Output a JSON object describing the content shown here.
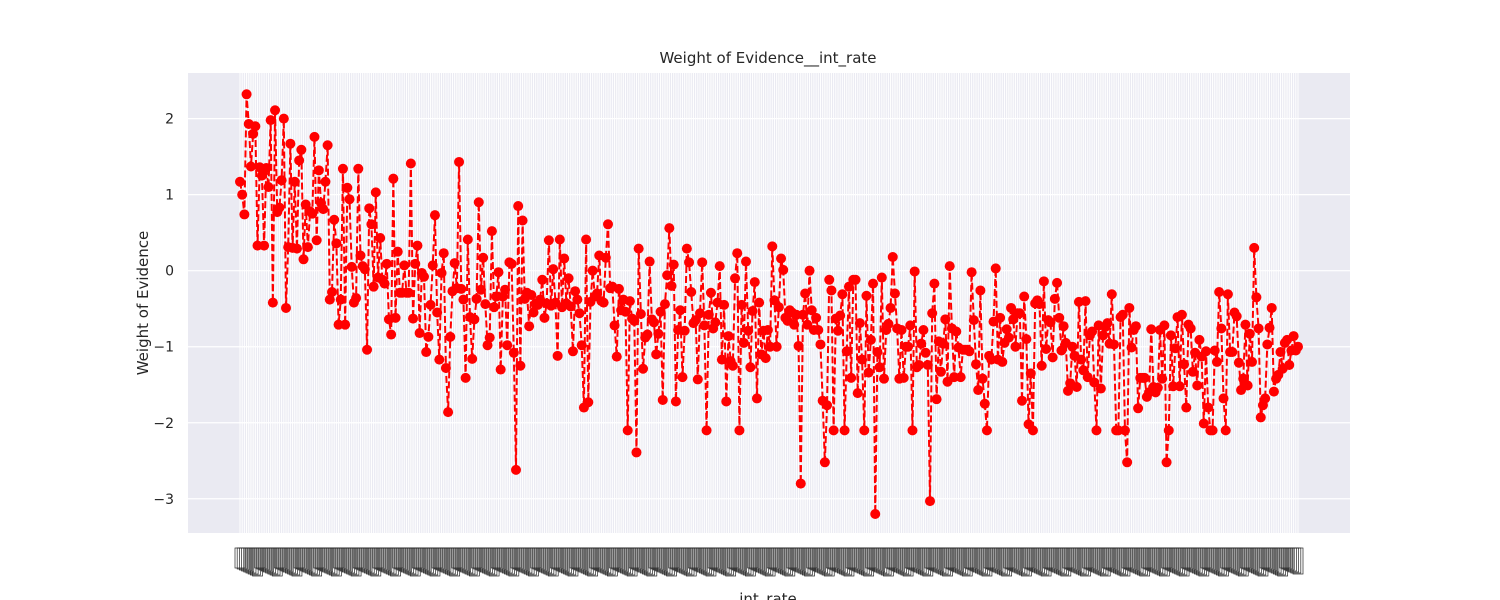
{
  "chart_data": {
    "type": "line",
    "title": "Weight of Evidence__int_rate",
    "xlabel": "int_rate",
    "ylabel": "Weight of Evidence",
    "ylim": [
      -3.45,
      2.6
    ],
    "yticks": [
      2,
      1,
      0,
      -1,
      -2,
      -3
    ],
    "ytick_labels": [
      "2",
      "1",
      "0",
      "−1",
      "−2",
      "−3"
    ],
    "grid": true,
    "legend": "none",
    "x_tick_labels_legible": false,
    "series": [
      {
        "values": [
          1.17,
          1.0,
          0.74,
          2.32,
          1.93,
          1.37,
          1.8,
          1.9,
          0.33,
          1.36,
          1.25,
          0.33,
          1.35,
          1.1,
          1.98,
          -0.42,
          2.11,
          0.77,
          0.83,
          1.19,
          2.0,
          -0.49,
          0.31,
          1.67,
          0.3,
          1.17,
          0.29,
          1.45,
          1.59,
          0.15,
          0.87,
          0.31,
          0.78,
          0.75,
          1.76,
          0.4,
          1.32,
          0.89,
          0.81,
          1.17,
          1.65,
          -0.38,
          -0.28,
          0.67,
          0.36,
          -0.71,
          -0.38,
          1.34,
          -0.71,
          1.09,
          0.94,
          0.05,
          -0.42,
          -0.36,
          1.34,
          0.2,
          0.06,
          0.02,
          -1.04,
          0.82,
          0.61,
          -0.21,
          1.03,
          -0.09,
          0.43,
          -0.12,
          -0.17,
          0.09,
          -0.64,
          -0.84,
          1.21,
          -0.62,
          0.25,
          -0.29,
          -0.29,
          0.07,
          -0.29,
          -0.29,
          1.41,
          -0.63,
          0.09,
          0.33,
          -0.82,
          -0.03,
          -0.08,
          -1.07,
          -0.87,
          -0.45,
          0.07,
          0.73,
          -0.55,
          -1.17,
          -0.03,
          0.23,
          -1.28,
          -1.86,
          -0.87,
          -0.27,
          0.1,
          -0.23,
          1.43,
          -0.24,
          -0.38,
          -1.41,
          0.41,
          -0.61,
          -1.16,
          -0.64,
          -0.37,
          0.9,
          -0.25,
          0.17,
          -0.44,
          -0.98,
          -0.88,
          0.52,
          -0.48,
          -0.34,
          -0.02,
          -1.3,
          -0.34,
          -0.25,
          -0.98,
          0.11,
          0.09,
          -1.08,
          -2.62,
          0.85,
          -1.25,
          0.66,
          -0.37,
          -0.29,
          -0.73,
          -0.32,
          -0.55,
          -0.43,
          -0.45,
          -0.38,
          -0.12,
          -0.62,
          -0.43,
          0.4,
          -0.46,
          0.02,
          -0.42,
          -1.12,
          0.41,
          -0.48,
          0.16,
          -0.43,
          -0.1,
          -0.47,
          -1.06,
          -0.27,
          -0.38,
          -0.56,
          -0.98,
          -1.8,
          0.41,
          -1.73,
          -0.41,
          0.0,
          -0.34,
          -0.3,
          0.2,
          -0.4,
          -0.42,
          0.17,
          0.61,
          -0.23,
          -0.21,
          -0.72,
          -1.13,
          -0.24,
          -0.52,
          -0.38,
          -0.54,
          -2.1,
          -0.4,
          -0.63,
          -0.66,
          -2.39,
          0.29,
          -0.57,
          -1.29,
          -0.88,
          -0.84,
          0.12,
          -0.64,
          -0.68,
          -1.1,
          -0.83,
          -0.54,
          -1.7,
          -0.44,
          -0.06,
          0.56,
          -0.2,
          0.08,
          -1.72,
          -0.78,
          -0.52,
          -1.4,
          -0.79,
          0.29,
          0.11,
          -0.28,
          -0.69,
          -0.65,
          -1.43,
          -0.56,
          0.11,
          -0.72,
          -2.1,
          -0.58,
          -0.29,
          -0.76,
          -0.68,
          -0.42,
          0.06,
          -1.17,
          -0.45,
          -1.72,
          -0.86,
          -1.19,
          -1.25,
          -0.1,
          0.23,
          -2.1,
          -0.45,
          -0.95,
          0.12,
          -0.79,
          -1.27,
          -0.53,
          -0.15,
          -1.68,
          -0.42,
          -1.1,
          -0.79,
          -1.15,
          -0.78,
          -1.0,
          0.32,
          -0.39,
          -1.0,
          -0.48,
          0.16,
          0.01,
          -0.62,
          -0.66,
          -0.52,
          -0.55,
          -0.71,
          -0.58,
          -0.99,
          -2.8,
          -0.58,
          -0.3,
          -0.71,
          0.0,
          -0.52,
          -0.78,
          -0.62,
          -0.78,
          -0.97,
          -1.71,
          -2.52,
          -1.77,
          -0.12,
          -0.26,
          -2.1,
          -0.63,
          -0.79,
          -0.59,
          -0.31,
          -2.1,
          -1.06,
          -0.21,
          -1.41,
          -0.12,
          -0.12,
          -1.61,
          -0.69,
          -1.17,
          -2.1,
          -0.33,
          -1.34,
          -0.91,
          -0.17,
          -3.2,
          -1.07,
          -1.27,
          -0.09,
          -1.42,
          -0.78,
          -0.7,
          -0.49,
          0.18,
          -0.3,
          -0.76,
          -1.42,
          -0.78,
          -1.41,
          -1.0,
          -1.0,
          -0.72,
          -2.1,
          -0.01,
          -1.27,
          -1.24,
          -0.96,
          -0.78,
          -1.08,
          -1.24,
          -3.03,
          -0.56,
          -0.17,
          -1.69,
          -0.93,
          -1.33,
          -0.96,
          -0.64,
          -1.46,
          0.06,
          -0.76,
          -1.4,
          -0.8,
          -1.01,
          -1.4,
          -1.04,
          -1.04,
          -1.04,
          -1.06,
          -0.02,
          -0.65,
          -1.23,
          -1.57,
          -0.26,
          -1.42,
          -1.75,
          -2.1,
          -1.12,
          -1.17,
          -0.67,
          0.03,
          -1.17,
          -0.62,
          -1.2,
          -0.95,
          -0.77,
          -0.88,
          -0.49,
          -0.64,
          -1.0,
          -0.56,
          -0.56,
          -1.71,
          -0.34,
          -0.9,
          -2.02,
          -1.35,
          -2.1,
          -0.43,
          -0.39,
          -0.44,
          -1.25,
          -0.14,
          -1.03,
          -0.65,
          -0.68,
          -1.14,
          -0.37,
          -0.16,
          -0.62,
          -1.05,
          -0.73,
          -0.95,
          -1.58,
          -1.48,
          -1.0,
          -1.12,
          -1.53,
          -0.41,
          -1.17,
          -1.31,
          -0.4,
          -1.4,
          -0.85,
          -0.8,
          -1.47,
          -2.1,
          -0.72,
          -1.55,
          -0.85,
          -0.74,
          -0.69,
          -0.96,
          -0.31,
          -0.97,
          -2.1,
          -2.1,
          -0.61,
          -0.58,
          -2.1,
          -2.52,
          -0.49,
          -1.01,
          -0.78,
          -0.73,
          -1.81,
          -1.41,
          -1.41,
          -1.41,
          -1.66,
          -1.6,
          -0.77,
          -1.53,
          -1.6,
          -1.54,
          -0.78,
          -1.42,
          -0.72,
          -2.52,
          -2.1,
          -0.85,
          -1.52,
          -1.02,
          -0.61,
          -1.52,
          -0.58,
          -1.23,
          -1.8,
          -0.71,
          -0.76,
          -1.33,
          -1.08,
          -1.51,
          -0.91,
          -1.13,
          -2.01,
          -1.06,
          -1.8,
          -2.1,
          -2.1,
          -1.05,
          -1.2,
          -0.28,
          -0.76,
          -1.68,
          -2.1,
          -0.31,
          -1.07,
          -1.07,
          -0.55,
          -0.6,
          -1.21,
          -1.57,
          -1.42,
          -0.71,
          -1.51,
          -0.83,
          -1.2,
          0.3,
          -0.35,
          -0.76,
          -1.93,
          -1.77,
          -1.68,
          -0.97,
          -0.75,
          -0.49,
          -1.59,
          -1.42,
          -1.37,
          -1.07,
          -1.29,
          -0.95,
          -0.91,
          -1.24,
          -1.05,
          -0.86,
          -1.05,
          -1.0
        ]
      }
    ]
  },
  "style": {
    "plot_bg": "#eaeaf2",
    "grid_color": "#ffffff",
    "series_color": "#ff0000"
  }
}
